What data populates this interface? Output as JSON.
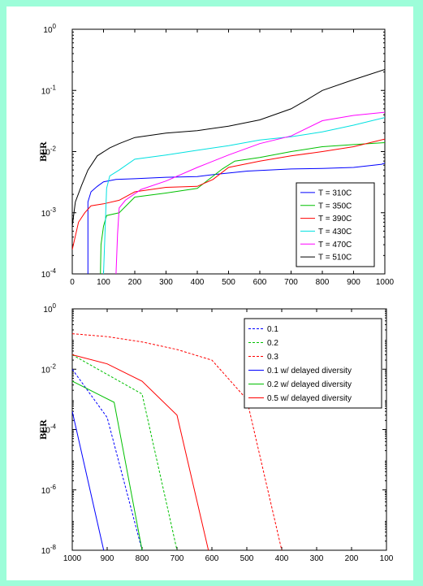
{
  "chart_data": [
    {
      "type": "line",
      "title": "",
      "xlabel": "",
      "ylabel": "BER",
      "xlim": [
        0,
        1000
      ],
      "ylim": [
        0.0001,
        1
      ],
      "yscale": "log",
      "grid": false,
      "legend_position": "bottom-right",
      "xticks": [
        "0",
        "100",
        "200",
        "300",
        "400",
        "500",
        "600",
        "700",
        "800",
        "900",
        "1000"
      ],
      "yticks": [
        {
          "base": "10",
          "exp": "0",
          "value": 1
        },
        {
          "base": "10",
          "exp": "-1",
          "value": 0.1
        },
        {
          "base": "10",
          "exp": "-2",
          "value": 0.01
        },
        {
          "base": "10",
          "exp": "-3",
          "value": 0.001
        },
        {
          "base": "10",
          "exp": "-4",
          "value": 0.0001
        }
      ],
      "series": [
        {
          "name": "T = 310C",
          "color": "#0000ff",
          "x": [
            50,
            50,
            60,
            80,
            100,
            140,
            200,
            300,
            400,
            450,
            560,
            700,
            800,
            900,
            990,
            1000
          ],
          "y": [
            0.0001,
            0.0015,
            0.0022,
            0.0027,
            0.0032,
            0.0035,
            0.0036,
            0.0038,
            0.0039,
            0.0042,
            0.0048,
            0.0052,
            0.0053,
            0.0055,
            0.0062,
            0.0065
          ]
        },
        {
          "name": "T = 350C",
          "color": "#00c000",
          "x": [
            90,
            92,
            100,
            110,
            150,
            200,
            300,
            400,
            480,
            520,
            600,
            700,
            800,
            900,
            1000
          ],
          "y": [
            0.0001,
            0.0003,
            0.0006,
            0.0009,
            0.001,
            0.0018,
            0.0021,
            0.0025,
            0.0052,
            0.007,
            0.008,
            0.01,
            0.012,
            0.013,
            0.014
          ]
        },
        {
          "name": "T = 390C",
          "color": "#ff0000",
          "x": [
            0,
            20,
            40,
            60,
            100,
            150,
            200,
            300,
            400,
            450,
            500,
            600,
            700,
            800,
            900,
            1000
          ],
          "y": [
            0.00025,
            0.0007,
            0.001,
            0.0013,
            0.0014,
            0.0016,
            0.0022,
            0.0026,
            0.0027,
            0.0035,
            0.0055,
            0.007,
            0.0085,
            0.01,
            0.012,
            0.016
          ]
        },
        {
          "name": "T = 430C",
          "color": "#00e0e0",
          "x": [
            100,
            110,
            120,
            150,
            200,
            300,
            400,
            500,
            600,
            700,
            800,
            900,
            1000
          ],
          "y": [
            0.0001,
            0.0025,
            0.004,
            0.005,
            0.0075,
            0.0088,
            0.0105,
            0.0125,
            0.0155,
            0.0175,
            0.021,
            0.027,
            0.036
          ]
        },
        {
          "name": "T = 470C",
          "color": "#ff00ff",
          "x": [
            140,
            145,
            150,
            170,
            220,
            300,
            400,
            500,
            600,
            700,
            800,
            900,
            1000
          ],
          "y": [
            0.0001,
            0.00045,
            0.0012,
            0.0016,
            0.0024,
            0.0033,
            0.0055,
            0.0088,
            0.0135,
            0.018,
            0.032,
            0.039,
            0.044
          ]
        },
        {
          "name": "T = 510C",
          "color": "#000000",
          "x": [
            0,
            10,
            30,
            50,
            80,
            120,
            150,
            200,
            300,
            400,
            500,
            600,
            700,
            750,
            800,
            900,
            1000
          ],
          "y": [
            0.0006,
            0.0015,
            0.0028,
            0.005,
            0.0085,
            0.0115,
            0.0135,
            0.017,
            0.02,
            0.022,
            0.026,
            0.033,
            0.05,
            0.07,
            0.1,
            0.15,
            0.22
          ]
        }
      ]
    },
    {
      "type": "line",
      "title": "",
      "xlabel": "",
      "ylabel": "BER",
      "xlim": [
        1000,
        100
      ],
      "xreversed": true,
      "ylim": [
        1e-08,
        1
      ],
      "yscale": "log",
      "grid": false,
      "legend_position": "top-right",
      "xticks": [
        "1000",
        "900",
        "800",
        "700",
        "600",
        "500",
        "400",
        "300",
        "200",
        "100"
      ],
      "yticks": [
        {
          "base": "10",
          "exp": "0",
          "value": 1
        },
        {
          "base": "10",
          "exp": "-2",
          "value": 0.01
        },
        {
          "base": "10",
          "exp": "-4",
          "value": 0.0001
        },
        {
          "base": "10",
          "exp": "-6",
          "value": 1e-06
        },
        {
          "base": "10",
          "exp": "-8",
          "value": 1e-08
        }
      ],
      "series": [
        {
          "name": "0.1",
          "color": "#0000ff",
          "dash": true,
          "x": [
            1000,
            900,
            800
          ],
          "y": [
            0.01,
            0.00025,
            1e-08
          ]
        },
        {
          "name": "0.2",
          "color": "#00c000",
          "dash": true,
          "x": [
            1000,
            800,
            700
          ],
          "y": [
            0.03,
            0.0015,
            1e-08
          ]
        },
        {
          "name": "0.3",
          "color": "#ff0000",
          "dash": true,
          "x": [
            1000,
            900,
            800,
            700,
            600,
            500,
            400
          ],
          "y": [
            0.15,
            0.12,
            0.08,
            0.045,
            0.02,
            0.001,
            1e-08
          ]
        },
        {
          "name": "0.1 w/ delayed diversity",
          "color": "#0000ff",
          "dash": false,
          "x": [
            1000,
            910
          ],
          "y": [
            0.0004,
            1e-08
          ]
        },
        {
          "name": "0.2 w/ delayed diversity",
          "color": "#00c000",
          "dash": false,
          "x": [
            1000,
            880,
            800
          ],
          "y": [
            0.004,
            0.0008,
            1e-08
          ]
        },
        {
          "name": "0.5 w/ delayed diversity",
          "color": "#ff0000",
          "dash": false,
          "x": [
            1000,
            900,
            800,
            700,
            610
          ],
          "y": [
            0.03,
            0.015,
            0.004,
            0.0003,
            1e-08
          ]
        }
      ]
    }
  ]
}
